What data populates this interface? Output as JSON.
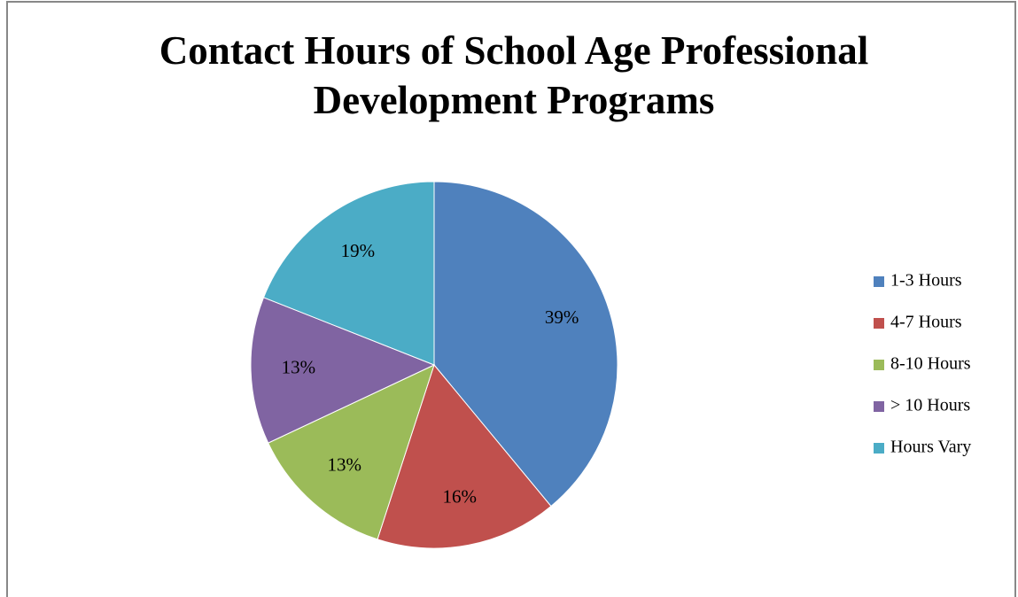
{
  "chart_data": {
    "type": "pie",
    "title": "Contact Hours of School Age Professional Development Programs",
    "categories": [
      "1-3 Hours",
      "4-7 Hours",
      "8-10 Hours",
      "> 10 Hours",
      "Hours Vary"
    ],
    "values": [
      39,
      16,
      13,
      13,
      19
    ],
    "value_labels": [
      "39%",
      "16%",
      "13%",
      "13%",
      "19%"
    ],
    "colors": [
      "#4f81bd",
      "#c0504d",
      "#9bbb59",
      "#8064a2",
      "#4bacc6"
    ],
    "legend": "right"
  }
}
